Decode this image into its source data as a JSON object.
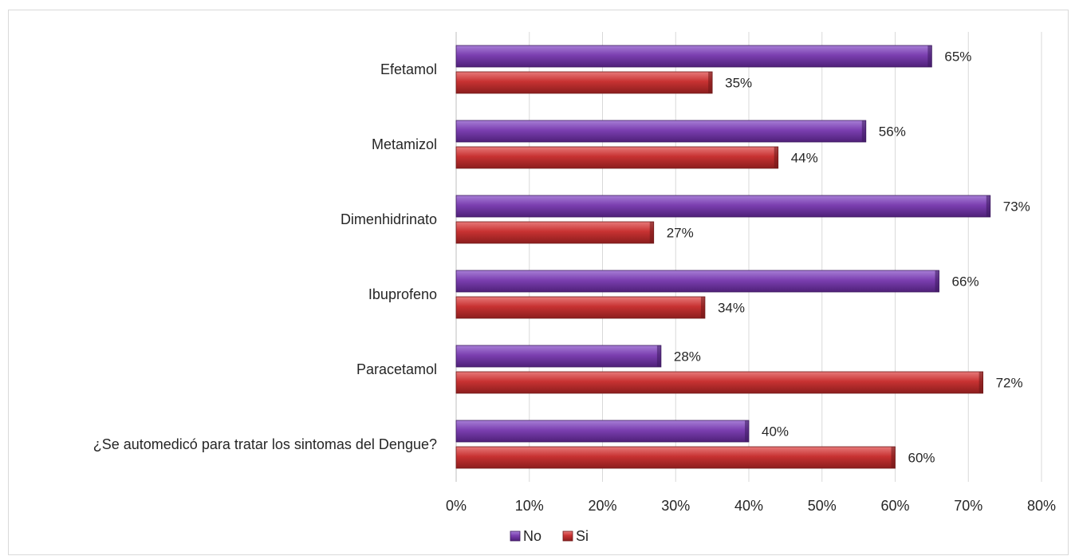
{
  "chart_data": {
    "type": "bar",
    "orientation": "horizontal",
    "categories": [
      "Efetamol",
      "Metamizol",
      "Dimenhidrinato",
      "Ibuprofeno",
      "Paracetamol",
      "¿Se automedicó para tratar los sintomas del Dengue?"
    ],
    "series": [
      {
        "name": "No",
        "color": "#7b3fb0",
        "values": [
          65,
          56,
          73,
          66,
          28,
          40
        ],
        "labels": [
          "65%",
          "56%",
          "73%",
          "66%",
          "28%",
          "40%"
        ]
      },
      {
        "name": "Si",
        "color": "#c83232",
        "values": [
          35,
          44,
          27,
          34,
          72,
          60
        ],
        "labels": [
          "35%",
          "44%",
          "27%",
          "34%",
          "72%",
          "60%"
        ]
      }
    ],
    "xlim": [
      0,
      80
    ],
    "x_ticks": [
      "0%",
      "10%",
      "20%",
      "30%",
      "40%",
      "50%",
      "60%",
      "70%",
      "80%"
    ],
    "grid": "vertical",
    "legend_position": "bottom-center",
    "title": "",
    "xlabel": "",
    "ylabel": ""
  }
}
